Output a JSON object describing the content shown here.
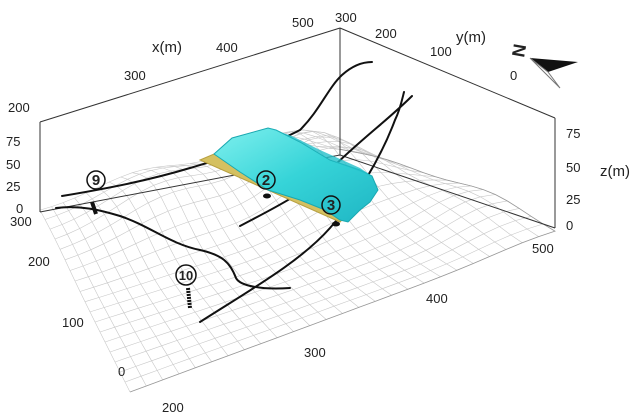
{
  "figure": {
    "axes": {
      "x": {
        "title": "x(m)",
        "ticks": [
          "200",
          "300",
          "400",
          "500"
        ]
      },
      "y": {
        "title": "y(m)",
        "ticks": [
          "0",
          "100",
          "200",
          "300"
        ]
      },
      "z": {
        "title": "z(m)",
        "ticks": [
          "0",
          "25",
          "50",
          "75"
        ]
      },
      "z_left_ticks": [
        "0",
        "25",
        "50",
        "75"
      ],
      "front_y_ticks": [
        "0",
        "100",
        "200",
        "300"
      ],
      "front_x_ticks": [
        "200",
        "300",
        "400",
        "500"
      ]
    },
    "north_arrow": {
      "label": "N"
    },
    "markers": [
      {
        "id": "2",
        "symbol": "②"
      },
      {
        "id": "3",
        "symbol": "③"
      },
      {
        "id": "9",
        "symbol": "⑨"
      },
      {
        "id": "10",
        "symbol": "⑩"
      }
    ],
    "colors": {
      "mesh": "#c8c8c8",
      "box": "#333333",
      "faults": "#111111",
      "surface_fill": "#40e0e0",
      "surface_edge": "#1aa8b0",
      "surface_band": "#d4c060"
    }
  }
}
